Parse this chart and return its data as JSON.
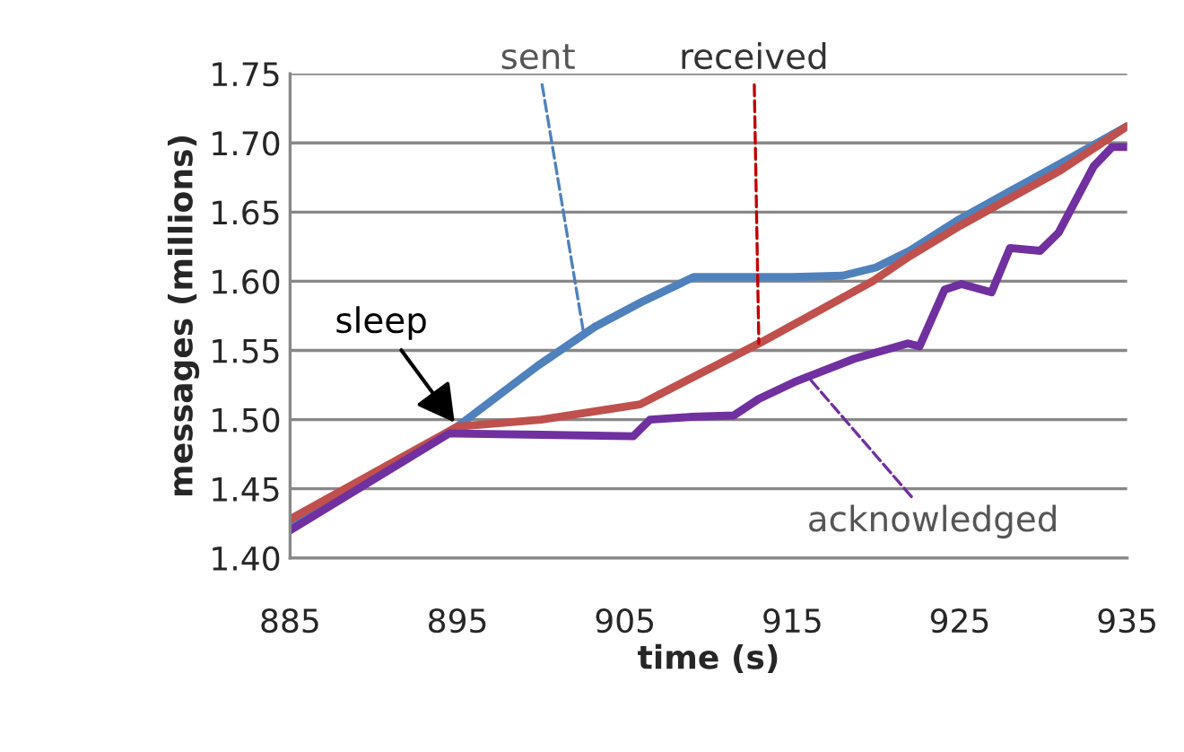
{
  "chart_data": {
    "type": "line",
    "xlabel": "time (s)",
    "ylabel": "messages (millions)",
    "xlim": [
      885,
      935
    ],
    "xticks": [
      885,
      895,
      905,
      915,
      925,
      935
    ],
    "ylim": [
      1.4,
      1.75
    ],
    "yticks": [
      {
        "value": 1.4,
        "label": "1.40"
      },
      {
        "value": 1.45,
        "label": "1.45"
      },
      {
        "value": 1.5,
        "label": "1.50"
      },
      {
        "value": 1.55,
        "label": "1.55"
      },
      {
        "value": 1.6,
        "label": "1.60"
      },
      {
        "value": 1.65,
        "label": "1.65"
      },
      {
        "value": 1.7,
        "label": "1.70"
      },
      {
        "value": 1.75,
        "label": "1.75"
      }
    ],
    "grid": "y",
    "legend": false,
    "marker": "none",
    "line_style": "solid",
    "series": [
      {
        "color": "#4f81bd",
        "x": [
          885,
          895,
          899.8,
          903.2,
          906,
          909.1,
          912,
          915,
          918,
          920,
          922,
          925,
          928,
          931,
          935
        ],
        "values": [
          1.425,
          1.495,
          1.539,
          1.567,
          1.585,
          1.603,
          1.603,
          1.603,
          1.604,
          1.61,
          1.622,
          1.645,
          1.665,
          1.685,
          1.712
        ]
      },
      {
        "color": "#c0504d",
        "x": [
          885,
          895,
          900,
          905.9,
          913,
          919.8,
          922,
          925,
          928,
          931,
          935
        ],
        "values": [
          1.428,
          1.495,
          1.5,
          1.511,
          1.555,
          1.6,
          1.618,
          1.64,
          1.66,
          1.68,
          1.712
        ]
      },
      {
        "color": "#7030a0",
        "x": [
          885,
          894.5,
          900,
          905.5,
          906.5,
          909,
          911.5,
          913,
          915.1,
          918.7,
          921.9,
          922.6,
          924.1,
          925.1,
          926.9,
          928,
          929.8,
          930.9,
          933,
          934.1,
          935
        ],
        "values": [
          1.42,
          1.49,
          1.489,
          1.488,
          1.5,
          1.502,
          1.503,
          1.515,
          1.527,
          1.544,
          1.555,
          1.553,
          1.594,
          1.598,
          1.592,
          1.624,
          1.622,
          1.635,
          1.683,
          1.697,
          1.697
        ]
      }
    ],
    "annotations": [
      {
        "text": "sent",
        "x": 902.5,
        "y": 1.565
      },
      {
        "text": "received",
        "x": 913,
        "y": 1.555
      },
      {
        "text": "sleep",
        "x": 895,
        "y": 1.495
      },
      {
        "text": "acknowledged",
        "x": 916,
        "y": 1.53
      }
    ]
  }
}
